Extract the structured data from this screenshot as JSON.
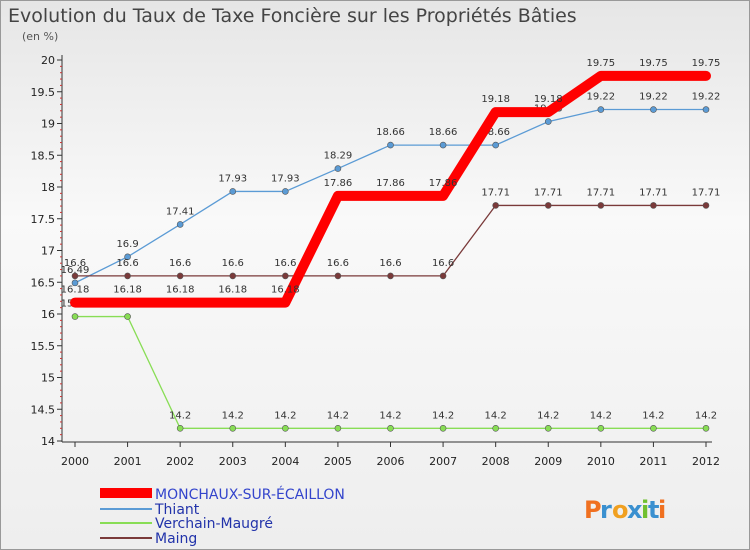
{
  "chart_data": {
    "type": "line",
    "title": "Evolution du Taux de Taxe Foncière sur les Propriétés Bâties",
    "subtitle": "(en %)",
    "xlabel": "",
    "ylabel": "",
    "x": [
      "2000",
      "2001",
      "2002",
      "2003",
      "2004",
      "2005",
      "2006",
      "2007",
      "2008",
      "2009",
      "2010",
      "2011",
      "2012"
    ],
    "ylim": [
      14,
      20
    ],
    "yticks": [
      "14",
      "14.5",
      "15",
      "15.5",
      "16",
      "16.5",
      "17",
      "17.5",
      "18",
      "18.5",
      "19",
      "19.5",
      "20"
    ],
    "grid": false,
    "legend": "bottom-left",
    "series": [
      {
        "name": "MONCHAUX-SUR-ÉCAILLON",
        "color": "#ff0000",
        "values": [
          16.18,
          16.18,
          16.18,
          16.18,
          16.18,
          17.86,
          17.86,
          17.86,
          19.18,
          19.18,
          19.75,
          19.75,
          19.75
        ],
        "labels": [
          "16.18",
          "16.18",
          "16.18",
          "16.18",
          "16.18",
          "17.86",
          "17.86",
          "17.86",
          "19.18",
          "19.18",
          "19.75",
          "19.75",
          "19.75"
        ]
      },
      {
        "name": "Thiant",
        "color": "#5b9bd5",
        "values": [
          16.49,
          16.9,
          17.41,
          17.93,
          17.93,
          18.29,
          18.66,
          18.66,
          18.66,
          19.03,
          19.22,
          19.22,
          19.22
        ],
        "labels": [
          "16.49",
          "16.9",
          "17.41",
          "17.93",
          "17.93",
          "18.29",
          "18.66",
          "18.66",
          "18.66",
          "19.03",
          "19.22",
          "19.22",
          "19.22"
        ]
      },
      {
        "name": "Verchain-Maugré",
        "color": "#88dd55",
        "values": [
          15.96,
          15.96,
          14.2,
          14.2,
          14.2,
          14.2,
          14.2,
          14.2,
          14.2,
          14.2,
          14.2,
          14.2,
          14.2
        ],
        "labels": [
          "15.96",
          "15.96",
          "14.2",
          "14.2",
          "14.2",
          "14.2",
          "14.2",
          "14.2",
          "14.2",
          "14.2",
          "14.2",
          "14.2",
          "14.2"
        ]
      },
      {
        "name": "Maing",
        "color": "#7a3a3a",
        "values": [
          16.6,
          16.6,
          16.6,
          16.6,
          16.6,
          16.6,
          16.6,
          16.6,
          17.71,
          17.71,
          17.71,
          17.71,
          17.71
        ],
        "labels": [
          "16.6",
          "16.6",
          "16.6",
          "16.6",
          "16.6",
          "16.6",
          "16.6",
          "16.6",
          "17.71",
          "17.71",
          "17.71",
          "17.71",
          "17.71"
        ]
      }
    ]
  },
  "logo": {
    "text": "Proxiti"
  }
}
